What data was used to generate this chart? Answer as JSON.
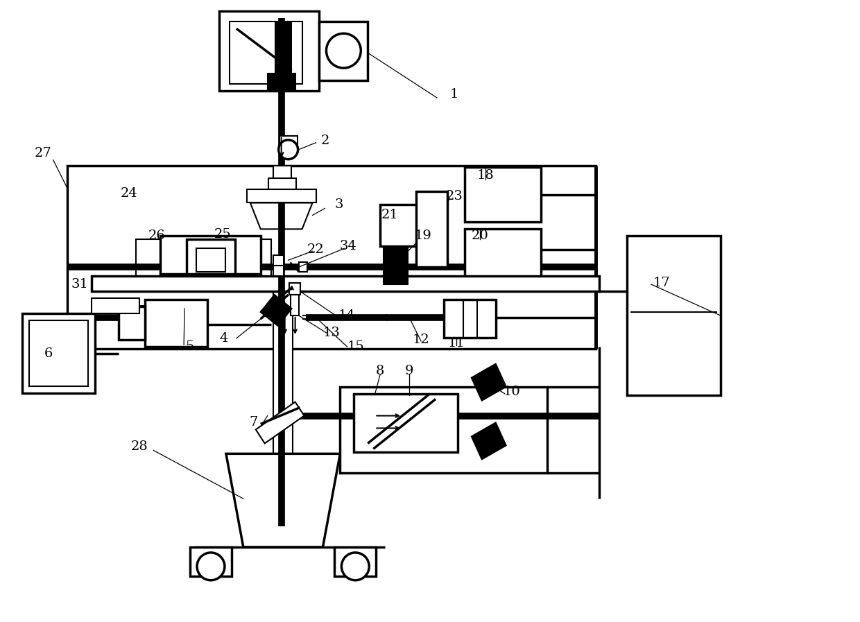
{
  "bg_color": "#ffffff",
  "fig_width": 12.4,
  "fig_height": 8.97,
  "dpi": 100
}
